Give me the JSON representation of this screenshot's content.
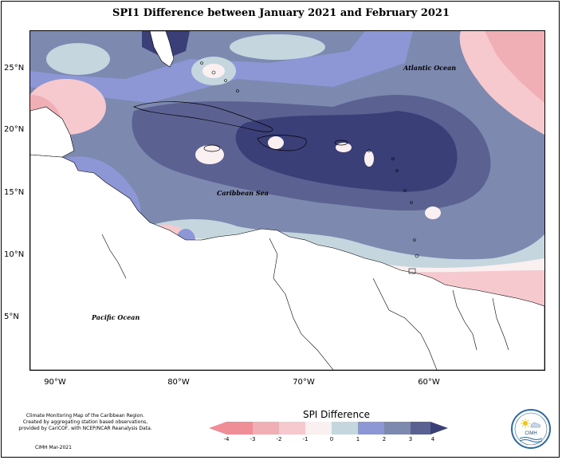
{
  "title": "SPI1 Difference between January 2021 and February 2021",
  "map": {
    "latitude_labels": [
      "25°N",
      "20°N",
      "15°N",
      "10°N",
      "5°N"
    ],
    "longitude_labels": [
      "90°W",
      "80°W",
      "70°W",
      "60°W"
    ],
    "ocean_labels": {
      "atlantic": "Atlantic Ocean",
      "caribbean": "Caribbean Sea",
      "pacific": "Pacific Ocean"
    },
    "colors": {
      "dark_navy": "#3b3f78",
      "slate_blue": "#5b6292",
      "mid_blue": "#7e89b0",
      "periwinkle": "#8d97d6",
      "pale_blue": "#c5d6df",
      "neutral": "#fbf0f1",
      "light_pink": "#f6c9cf",
      "pink": "#f0aeb5",
      "rose": "#f08e97"
    }
  },
  "credit": {
    "lines": [
      "Climate Monitoring Map of the Caribbean Region.",
      "Created by aggregating station based observations,",
      "provided by CariCOF, with NCEP/NCAR Reanalysis Data."
    ],
    "date": "CIMH Mar-2021"
  },
  "legend": {
    "title": "SPI Difference",
    "ticks": [
      "-4",
      "-3",
      "-2",
      "-1",
      "0",
      "1",
      "2",
      "3",
      "4"
    ],
    "colors": [
      "#f08e97",
      "#f0aeb5",
      "#f6c9cf",
      "#fbf0f1",
      "#c5d6df",
      "#8d97d6",
      "#7e89b0",
      "#5b6292"
    ]
  },
  "logo": {
    "text": "CIMH",
    "sun_icon": "sun-icon"
  }
}
